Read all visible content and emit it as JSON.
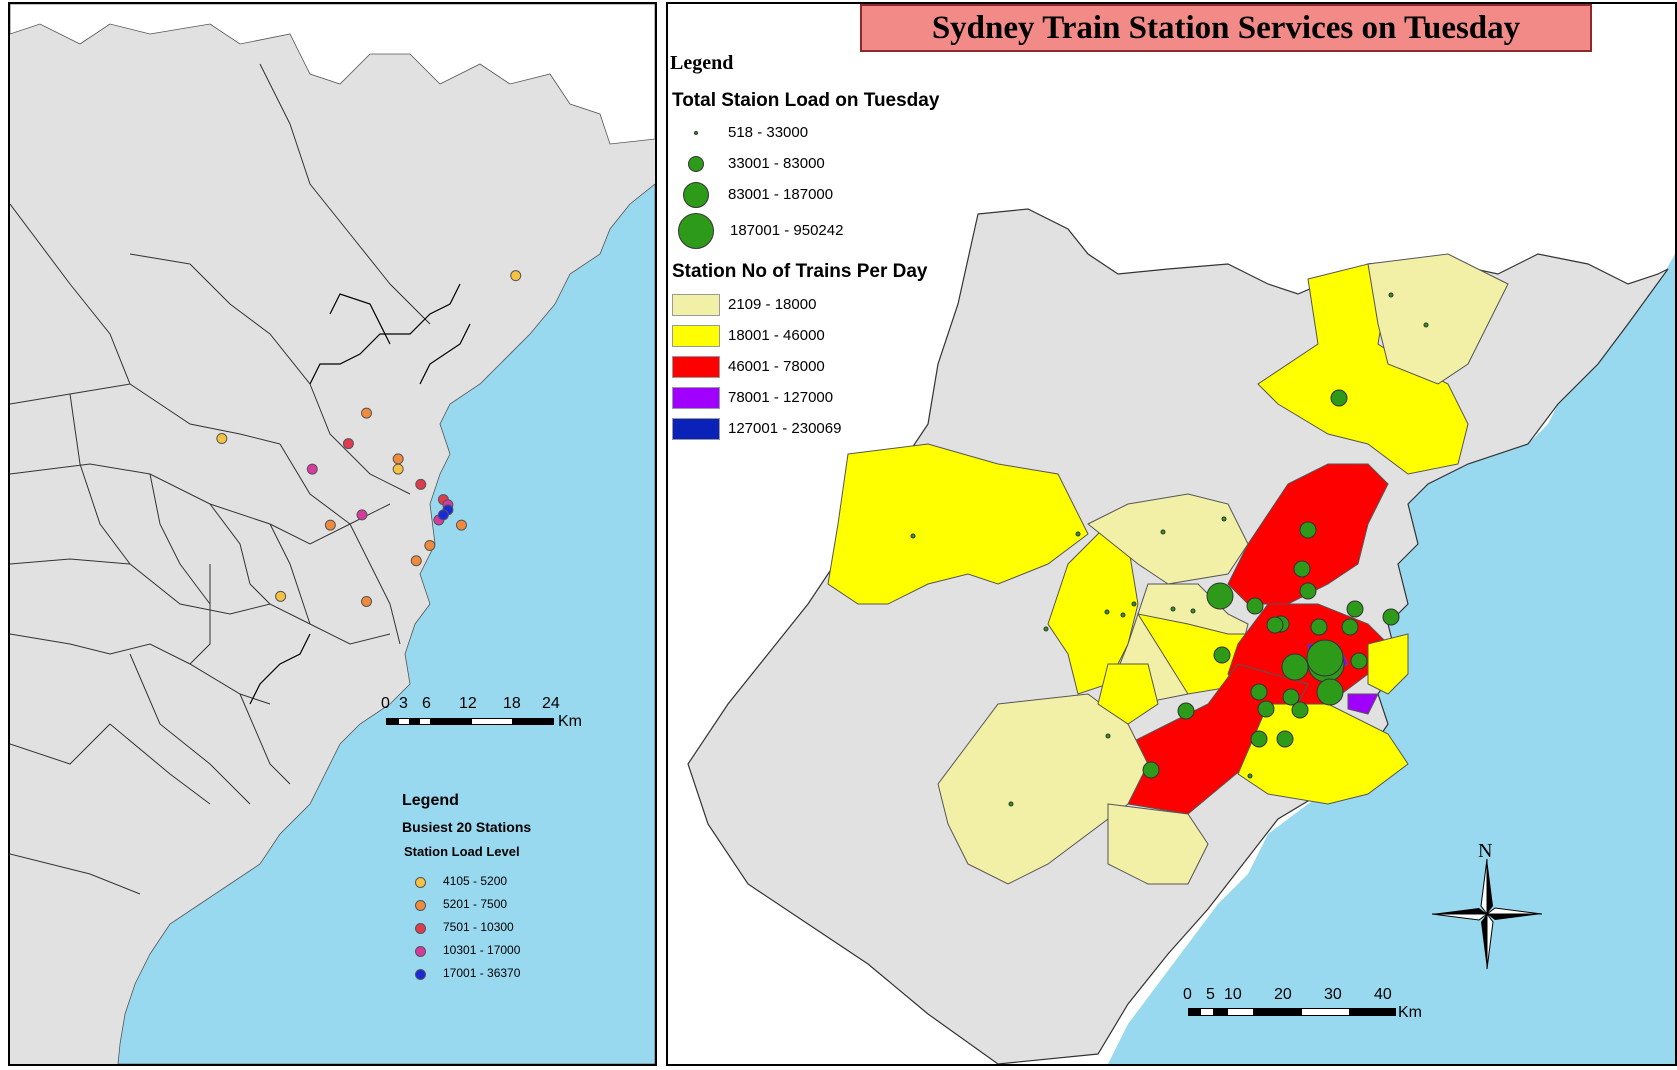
{
  "map_title": "Sydney Train Station Services on Tuesday",
  "left_map": {
    "legend": {
      "heading": "Legend",
      "subheading": "Busiest 20 Stations",
      "subtitle": "Station Load Level",
      "classes": [
        {
          "label": "4105 - 5200",
          "color": "#f5c242"
        },
        {
          "label": "5201 - 7500",
          "color": "#f08a3c"
        },
        {
          "label": "7501 - 10300",
          "color": "#e03a4e"
        },
        {
          "label": "10301 - 17000",
          "color": "#d63a9e"
        },
        {
          "label": "17001 - 36370",
          "color": "#1a2ad8"
        }
      ]
    },
    "scale": {
      "ticks": [
        "0",
        "3",
        "6",
        "12",
        "18",
        "24"
      ],
      "unit": "Km"
    },
    "stations": [
      {
        "cls": 0,
        "lon": 151.33,
        "lat": -33.43
      },
      {
        "cls": 0,
        "lon": 150.68,
        "lat": -33.75
      },
      {
        "cls": 0,
        "lon": 150.81,
        "lat": -34.06
      },
      {
        "cls": 0,
        "lon": 151.07,
        "lat": -33.81
      },
      {
        "cls": 1,
        "lon": 151.0,
        "lat": -33.7
      },
      {
        "cls": 1,
        "lon": 151.07,
        "lat": -33.79
      },
      {
        "cls": 1,
        "lon": 150.92,
        "lat": -33.92
      },
      {
        "cls": 1,
        "lon": 151.11,
        "lat": -33.99
      },
      {
        "cls": 1,
        "lon": 151.14,
        "lat": -33.96
      },
      {
        "cls": 1,
        "lon": 151.21,
        "lat": -33.92
      },
      {
        "cls": 1,
        "lon": 151.0,
        "lat": -34.07
      },
      {
        "cls": 2,
        "lon": 150.96,
        "lat": -33.76
      },
      {
        "cls": 2,
        "lon": 151.12,
        "lat": -33.84
      },
      {
        "cls": 2,
        "lon": 151.17,
        "lat": -33.87
      },
      {
        "cls": 3,
        "lon": 150.88,
        "lat": -33.81
      },
      {
        "cls": 3,
        "lon": 150.99,
        "lat": -33.9
      },
      {
        "cls": 3,
        "lon": 151.16,
        "lat": -33.91
      },
      {
        "cls": 3,
        "lon": 151.18,
        "lat": -33.88
      },
      {
        "cls": 4,
        "lon": 151.18,
        "lat": -33.89
      },
      {
        "cls": 4,
        "lon": 151.17,
        "lat": -33.9
      }
    ]
  },
  "right_map": {
    "legend": {
      "heading": "Legend",
      "load_title": "Total Staion Load on Tuesday",
      "load_classes": [
        {
          "label": "518 - 33000",
          "r": 2
        },
        {
          "label": "33001 - 83000",
          "r": 8
        },
        {
          "label": "83001 - 187000",
          "r": 13
        },
        {
          "label": "187001 - 950242",
          "r": 18
        }
      ],
      "trains_title": "Station No of Trains Per Day",
      "trains_classes": [
        {
          "label": "2109 - 18000",
          "color": "#f2efa6"
        },
        {
          "label": "18001 - 46000",
          "color": "#ffff00"
        },
        {
          "label": "46001 - 78000",
          "color": "#ff0000"
        },
        {
          "label": "78001 - 127000",
          "color": "#a000ff"
        },
        {
          "label": "127001 - 230069",
          "color": "#0a22b8"
        }
      ]
    },
    "scale": {
      "ticks": [
        "0",
        "5",
        "10",
        "20",
        "30",
        "40"
      ],
      "unit": "Km"
    },
    "north_label": "N",
    "colors": {
      "sea": "#99d9f0",
      "land": "#e1e1e1",
      "green_dot": "#2e9a1a"
    }
  }
}
